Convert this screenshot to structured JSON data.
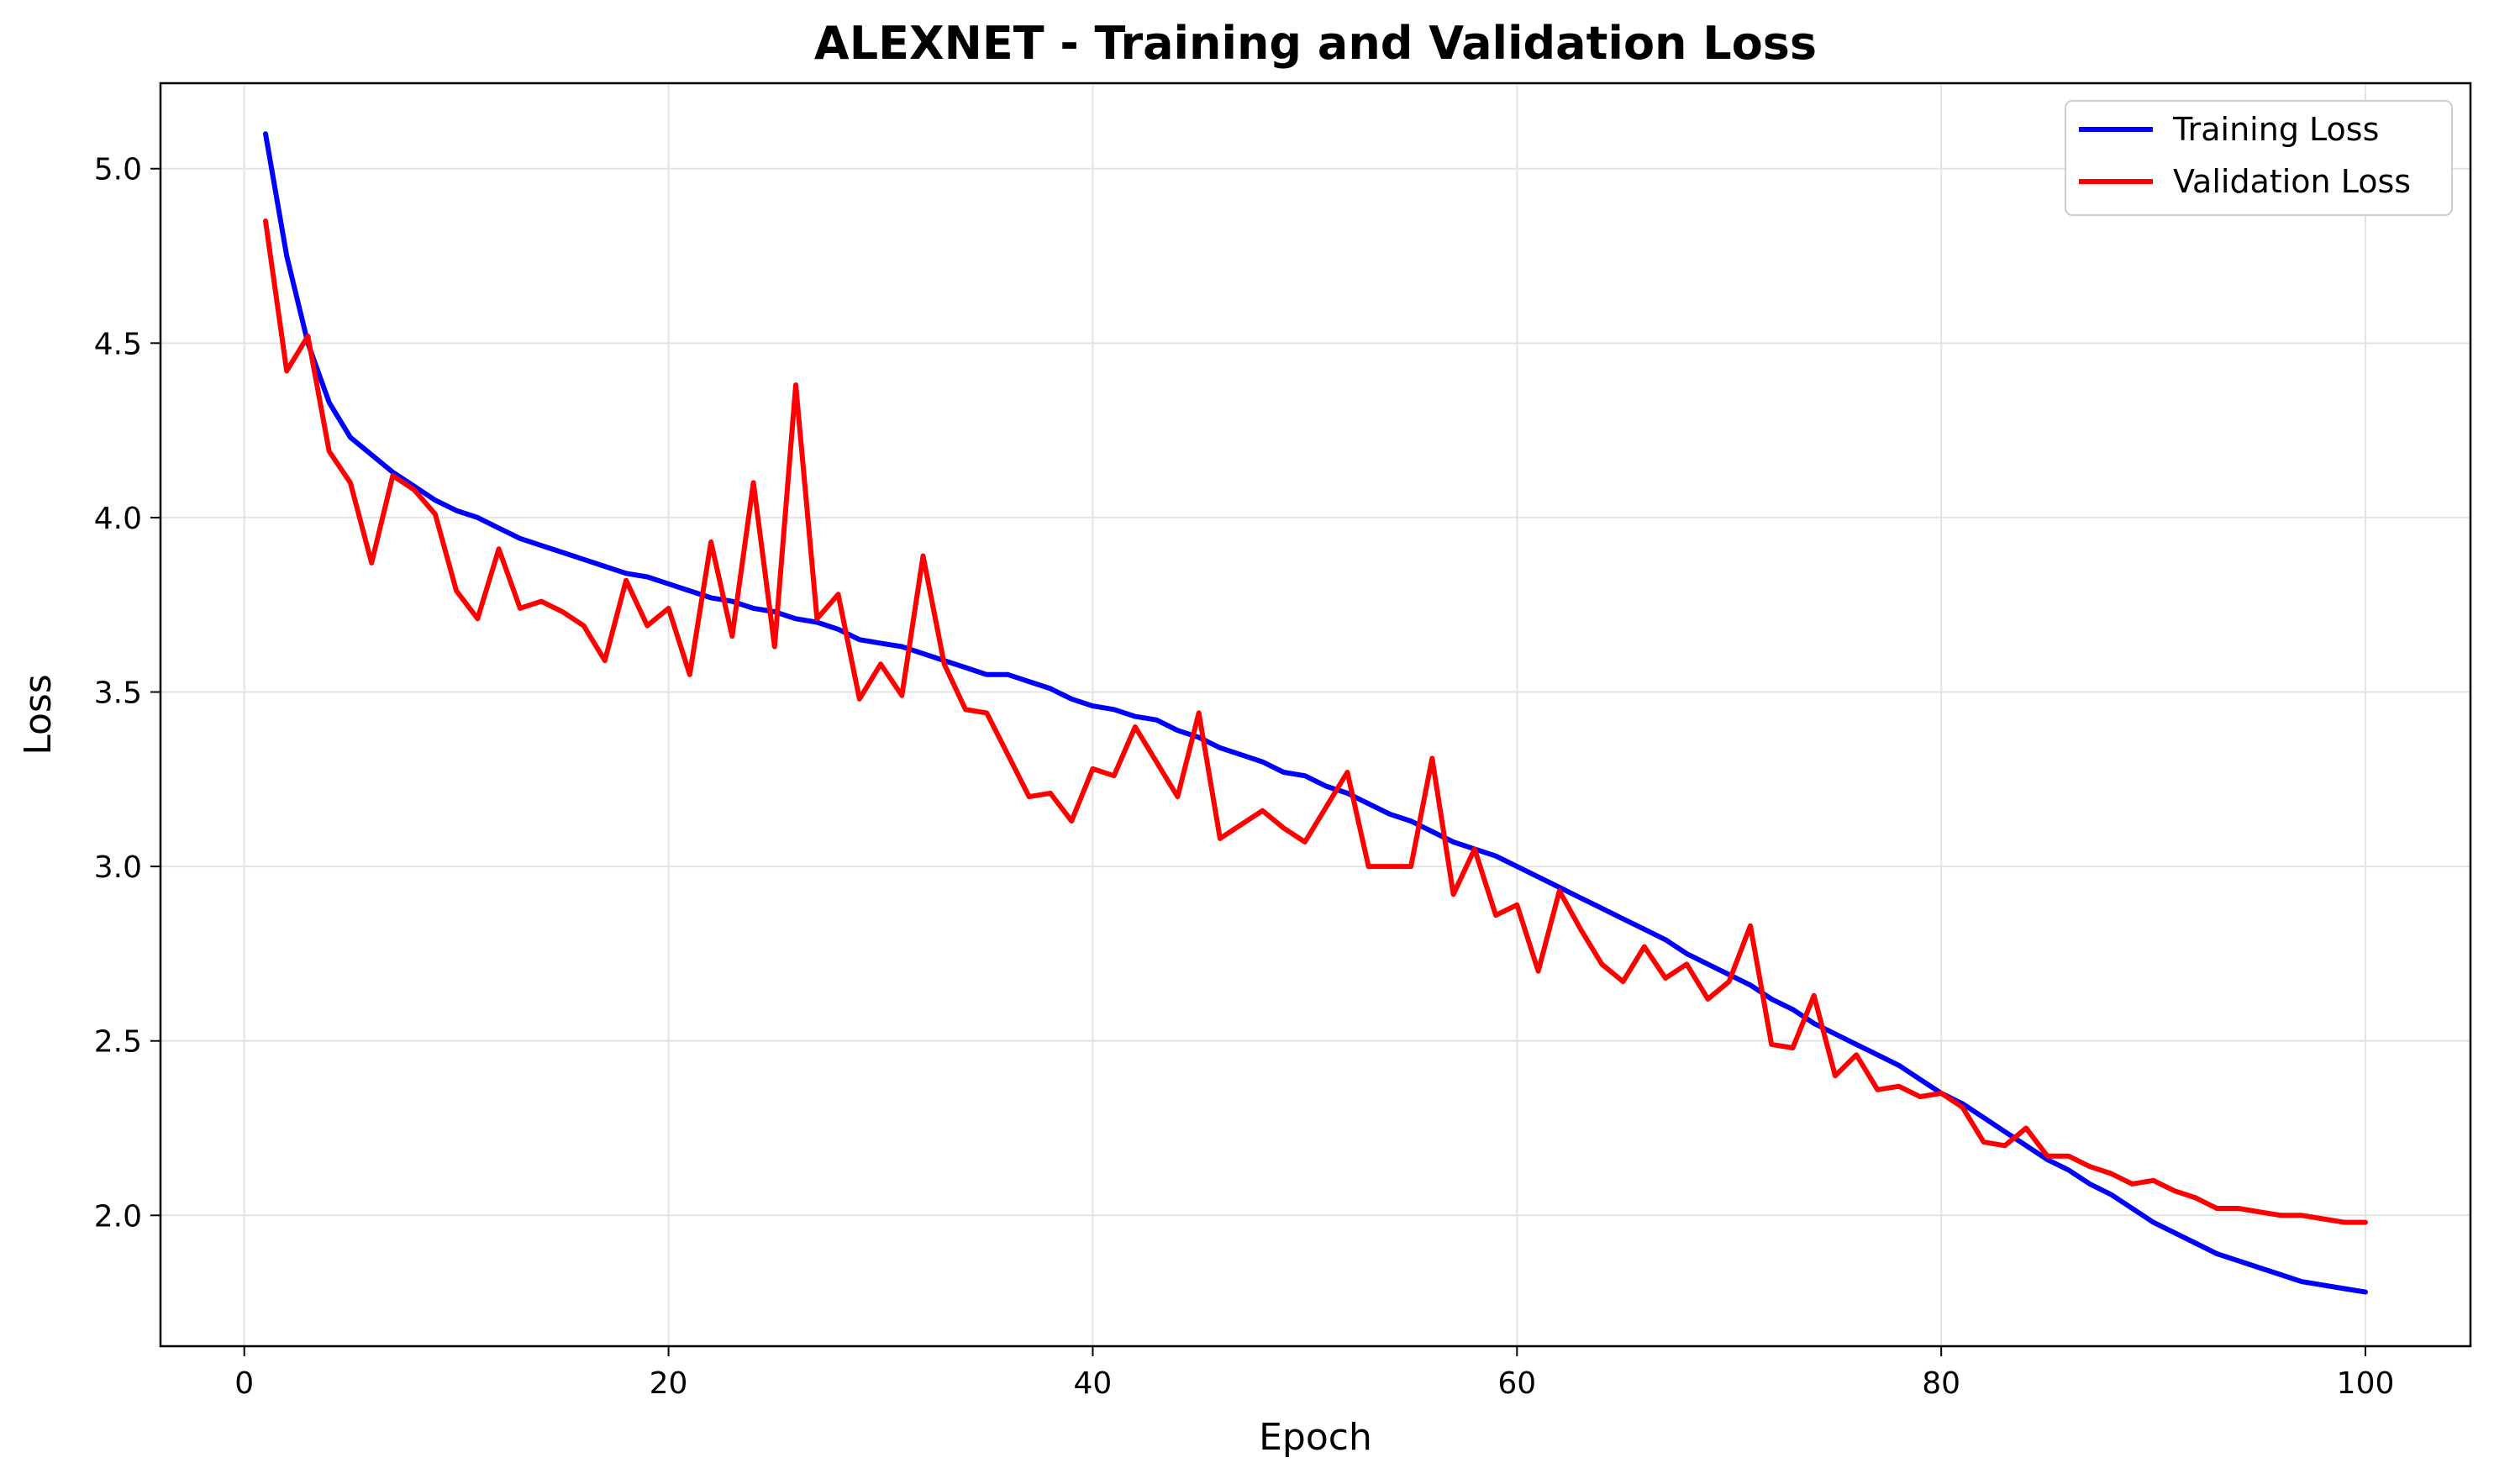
{
  "chart_data": {
    "type": "line",
    "title": "ALEXNET - Training and Validation Loss",
    "xlabel": "Epoch",
    "ylabel": "Loss",
    "xlim": [
      -3.95,
      104.95
    ],
    "ylim": [
      1.625,
      5.245
    ],
    "xticks": [
      0,
      20,
      40,
      60,
      80,
      100
    ],
    "yticks": [
      2.0,
      2.5,
      3.0,
      3.5,
      4.0,
      4.5,
      5.0
    ],
    "xtick_labels": [
      "0",
      "20",
      "40",
      "60",
      "80",
      "100"
    ],
    "ytick_labels": [
      "2.0",
      "2.5",
      "3.0",
      "3.5",
      "4.0",
      "4.5",
      "5.0"
    ],
    "grid": true,
    "legend_position": "top-right",
    "x": [
      1,
      2,
      3,
      4,
      5,
      6,
      7,
      8,
      9,
      10,
      11,
      12,
      13,
      14,
      15,
      16,
      17,
      18,
      19,
      20,
      21,
      22,
      23,
      24,
      25,
      26,
      27,
      28,
      29,
      30,
      31,
      32,
      33,
      34,
      35,
      36,
      37,
      38,
      39,
      40,
      41,
      42,
      43,
      44,
      45,
      46,
      47,
      48,
      49,
      50,
      51,
      52,
      53,
      54,
      55,
      56,
      57,
      58,
      59,
      60,
      61,
      62,
      63,
      64,
      65,
      66,
      67,
      68,
      69,
      70,
      71,
      72,
      73,
      74,
      75,
      76,
      77,
      78,
      79,
      80,
      81,
      82,
      83,
      84,
      85,
      86,
      87,
      88,
      89,
      90,
      91,
      92,
      93,
      94,
      95,
      96,
      97,
      98,
      99,
      100
    ],
    "series": [
      {
        "name": "Training Loss",
        "color": "#0000ff",
        "values": [
          5.1,
          4.75,
          4.5,
          4.33,
          4.23,
          4.18,
          4.13,
          4.09,
          4.05,
          4.02,
          4.0,
          3.97,
          3.94,
          3.92,
          3.9,
          3.88,
          3.86,
          3.84,
          3.83,
          3.81,
          3.79,
          3.77,
          3.76,
          3.74,
          3.73,
          3.71,
          3.7,
          3.68,
          3.65,
          3.64,
          3.63,
          3.61,
          3.59,
          3.57,
          3.55,
          3.55,
          3.53,
          3.51,
          3.48,
          3.46,
          3.45,
          3.43,
          3.42,
          3.39,
          3.37,
          3.34,
          3.32,
          3.3,
          3.27,
          3.26,
          3.23,
          3.21,
          3.18,
          3.15,
          3.13,
          3.1,
          3.07,
          3.05,
          3.03,
          3.0,
          2.97,
          2.94,
          2.91,
          2.88,
          2.85,
          2.82,
          2.79,
          2.75,
          2.72,
          2.69,
          2.66,
          2.62,
          2.59,
          2.55,
          2.52,
          2.49,
          2.46,
          2.43,
          2.39,
          2.35,
          2.32,
          2.28,
          2.24,
          2.2,
          2.16,
          2.13,
          2.09,
          2.06,
          2.02,
          1.98,
          1.95,
          1.92,
          1.89,
          1.87,
          1.85,
          1.83,
          1.81,
          1.8,
          1.79,
          1.78
        ]
      },
      {
        "name": "Validation Loss",
        "color": "#ff0000",
        "values": [
          4.85,
          4.42,
          4.52,
          4.19,
          4.1,
          3.87,
          4.12,
          4.08,
          4.01,
          3.79,
          3.71,
          3.91,
          3.74,
          3.76,
          3.73,
          3.69,
          3.59,
          3.82,
          3.69,
          3.74,
          3.55,
          3.93,
          3.66,
          4.1,
          3.63,
          4.38,
          3.71,
          3.78,
          3.48,
          3.58,
          3.49,
          3.89,
          3.58,
          3.45,
          3.44,
          3.32,
          3.2,
          3.21,
          3.13,
          3.28,
          3.26,
          3.4,
          3.3,
          3.2,
          3.44,
          3.08,
          3.12,
          3.16,
          3.11,
          3.07,
          3.17,
          3.27,
          3.0,
          3.0,
          3.0,
          3.31,
          2.92,
          3.05,
          2.86,
          2.89,
          2.7,
          2.93,
          2.82,
          2.72,
          2.67,
          2.77,
          2.68,
          2.72,
          2.62,
          2.67,
          2.83,
          2.49,
          2.48,
          2.63,
          2.4,
          2.46,
          2.36,
          2.37,
          2.34,
          2.35,
          2.31,
          2.21,
          2.2,
          2.25,
          2.17,
          2.17,
          2.14,
          2.12,
          2.09,
          2.1,
          2.07,
          2.05,
          2.02,
          2.02,
          2.01,
          2.0,
          2.0,
          1.99,
          1.98,
          1.98
        ]
      }
    ]
  }
}
